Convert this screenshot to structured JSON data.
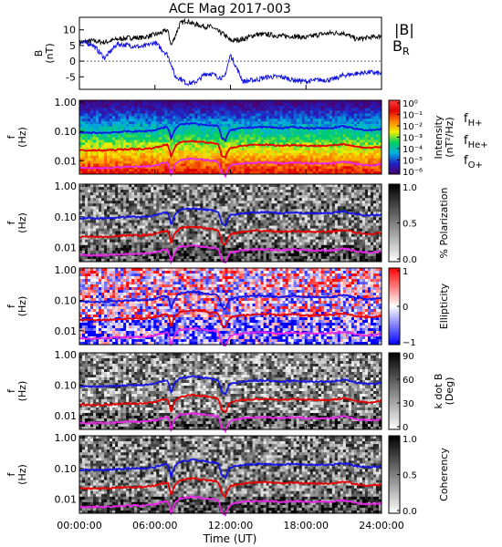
{
  "title": "ACE Mag 2017-003",
  "xlabel": "Time (UT)",
  "time_ticks": [
    "00:00:00",
    "06:00:00",
    "12:00:00",
    "18:00:00",
    "24:00:00"
  ],
  "colors": {
    "B_total": "#000000",
    "B_R": "#1010e0",
    "fH": "#1414e6",
    "fHe": "#e60000",
    "fO": "#e628e6"
  },
  "chart_data": [
    {
      "type": "line",
      "panel": "field",
      "ylabel": "B",
      "yunit": "(nT)",
      "ylim": [
        -9,
        14
      ],
      "yticks": [
        "10",
        "5",
        "0",
        "-5"
      ],
      "ytick_values": [
        10,
        5,
        0,
        -5
      ],
      "legend": [
        "|B|",
        "B",
        "R"
      ],
      "x_hours": [
        0,
        1,
        2,
        3,
        4,
        5,
        6,
        6.5,
        7,
        7.3,
        7.6,
        8,
        8.5,
        9,
        9.5,
        10,
        10.5,
        11,
        11.5,
        12,
        13,
        14,
        15,
        16,
        17,
        18,
        19,
        20,
        21,
        22,
        23,
        24
      ],
      "series": [
        {
          "key": "B_total",
          "values": [
            6,
            6.5,
            6,
            7,
            7.5,
            7.5,
            8.5,
            9,
            10,
            5,
            8,
            12,
            13,
            12,
            11.5,
            11,
            11,
            9.5,
            8.5,
            6.5,
            7,
            8.5,
            8.5,
            8,
            8,
            7.5,
            8.5,
            9,
            9,
            7,
            7.5,
            8
          ]
        },
        {
          "key": "B_R",
          "values": [
            6,
            5.5,
            1,
            5.5,
            5,
            4.5,
            6,
            4,
            2,
            -1,
            -5,
            -5.5,
            -7,
            -7,
            -6,
            -4,
            -4,
            -5,
            -5.5,
            2,
            -6.5,
            -6,
            -5,
            -5,
            -6,
            -6.5,
            -6,
            -6,
            -4.5,
            -4,
            -3.5,
            -4
          ]
        }
      ]
    },
    {
      "type": "heatmap",
      "panel": "intensity",
      "ylabel": "f",
      "yunit": "(Hz)",
      "yticks": [
        "1.00",
        "0.10",
        "0.01"
      ],
      "ytick_values": [
        1.0,
        0.1,
        0.01
      ],
      "colorbar_label": "Intensity",
      "colorbar_unit": "(nT²/Hz)",
      "colorbar_ticks": [
        "10⁰",
        "10⁻¹",
        "10⁻²",
        "10⁻³",
        "10⁻⁴",
        "10⁻⁵",
        "10⁻⁶"
      ],
      "colorscale": "rainbow",
      "legend": [
        "f",
        "H+",
        "f",
        "He+",
        "f",
        "O+"
      ]
    },
    {
      "type": "heatmap",
      "panel": "polarization",
      "ylabel": "f",
      "yunit": "(Hz)",
      "yticks": [
        "1.00",
        "0.10",
        "0.01"
      ],
      "colorbar_label": "% Polarization",
      "colorbar_ticks": [
        "1.0",
        "0.5",
        "0.0"
      ],
      "colorscale": "gray"
    },
    {
      "type": "heatmap",
      "panel": "ellipticity",
      "ylabel": "f",
      "yunit": "(Hz)",
      "yticks": [
        "1.00",
        "0.10",
        "0.01"
      ],
      "colorbar_label": "Ellipticity",
      "colorbar_ticks": [
        "1",
        "0",
        "−1"
      ],
      "colorscale": "bwr"
    },
    {
      "type": "heatmap",
      "panel": "kdotb",
      "ylabel": "f",
      "yunit": "(Hz)",
      "yticks": [
        "1.00",
        "0.10",
        "0.01"
      ],
      "colorbar_label": "k dot B",
      "colorbar_unit": "(Deg)",
      "colorbar_ticks": [
        "90",
        "60",
        "30",
        "0"
      ],
      "colorscale": "gray"
    },
    {
      "type": "heatmap",
      "panel": "coherency",
      "ylabel": "f",
      "yunit": "(Hz)",
      "yticks": [
        "1.00",
        "0.10",
        "0.01"
      ],
      "colorbar_label": "Coherency",
      "colorbar_ticks": [
        "1.0",
        "0.5",
        "0.0"
      ],
      "colorscale": "gray"
    }
  ],
  "gyro_lines": {
    "x_hours": [
      0,
      2,
      4,
      5,
      6,
      6.5,
      7,
      7.3,
      7.6,
      8,
      9,
      9.5,
      10,
      10.5,
      11,
      11.3,
      11.6,
      12,
      13,
      14,
      15,
      16,
      17,
      18,
      19,
      20,
      21,
      22,
      23,
      24
    ],
    "fH": [
      0.09,
      0.09,
      0.1,
      0.1,
      0.11,
      0.13,
      0.14,
      0.05,
      0.12,
      0.17,
      0.19,
      0.18,
      0.17,
      0.16,
      0.15,
      0.06,
      0.05,
      0.11,
      0.13,
      0.14,
      0.14,
      0.13,
      0.14,
      0.13,
      0.13,
      0.13,
      0.15,
      0.12,
      0.11,
      0.12
    ]
  }
}
